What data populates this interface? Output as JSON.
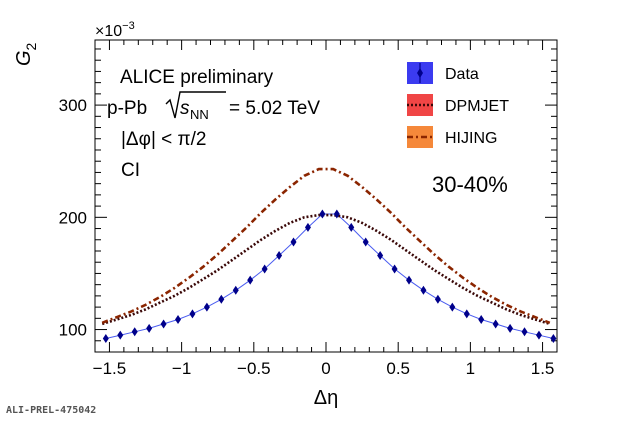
{
  "chart_data": {
    "type": "line",
    "ylabel": "G",
    "ylabel_sub": "2",
    "y_multiplier": "×10",
    "y_multiplier_exp": "−3",
    "xlabel": "Δη",
    "xlim": [
      -1.6,
      1.6
    ],
    "ylim": [
      80,
      358
    ],
    "x_ticks": [
      -1.5,
      -1,
      -0.5,
      0,
      0.5,
      1,
      1.5
    ],
    "x_tick_labels": [
      "−1.5",
      "−1",
      "−0.5",
      "0",
      "0.5",
      "1",
      "1.5"
    ],
    "y_ticks": [
      100,
      200,
      300
    ],
    "y_tick_labels": [
      "100",
      "200",
      "300"
    ],
    "annotations": {
      "experiment": "ALICE preliminary",
      "system_prefix": "p-Pb",
      "energy_value": "= 5.02 TeV",
      "phi_cut": "|Δφ| < π/2",
      "quantity": "CI",
      "centrality": "30-40%"
    },
    "legend_position": "top-right",
    "series": [
      {
        "name": "Data",
        "color": "#00008b",
        "fill": "#3b3bf0",
        "style": "markers",
        "x": [
          -1.525,
          -1.425,
          -1.325,
          -1.225,
          -1.125,
          -1.025,
          -0.925,
          -0.825,
          -0.725,
          -0.625,
          -0.525,
          -0.425,
          -0.325,
          -0.225,
          -0.125,
          -0.025,
          0.075,
          0.175,
          0.275,
          0.375,
          0.475,
          0.575,
          0.675,
          0.775,
          0.875,
          0.975,
          1.075,
          1.175,
          1.275,
          1.375,
          1.475,
          1.575
        ],
        "y": [
          92,
          95,
          98,
          101,
          105,
          109,
          114,
          120,
          127,
          135,
          144,
          154,
          166,
          178,
          191,
          203,
          203,
          191,
          178,
          166,
          154,
          144,
          135,
          127,
          120,
          114,
          109,
          105,
          101,
          98,
          95,
          92
        ]
      },
      {
        "name": "DPMJET",
        "color": "#3a0808",
        "fill": "#f04545",
        "style": "dotted",
        "x": [
          -1.55,
          -1.45,
          -1.35,
          -1.25,
          -1.15,
          -1.05,
          -0.95,
          -0.85,
          -0.75,
          -0.65,
          -0.55,
          -0.45,
          -0.35,
          -0.25,
          -0.15,
          -0.05,
          0.05,
          0.15,
          0.25,
          0.35,
          0.45,
          0.55,
          0.65,
          0.75,
          0.85,
          0.95,
          1.05,
          1.15,
          1.25,
          1.35,
          1.45,
          1.55
        ],
        "y": [
          105,
          109,
          113,
          118,
          124,
          130,
          137,
          145,
          153,
          162,
          171,
          180,
          188,
          195,
          200,
          202,
          202,
          200,
          195,
          188,
          180,
          171,
          162,
          153,
          145,
          137,
          130,
          124,
          118,
          113,
          109,
          105
        ]
      },
      {
        "name": "HIJING",
        "color": "#8b2500",
        "fill": "#f5883a",
        "style": "dashdot",
        "x": [
          -1.55,
          -1.45,
          -1.35,
          -1.25,
          -1.15,
          -1.05,
          -0.95,
          -0.85,
          -0.75,
          -0.65,
          -0.55,
          -0.45,
          -0.35,
          -0.25,
          -0.15,
          -0.05,
          0.05,
          0.15,
          0.25,
          0.35,
          0.45,
          0.55,
          0.65,
          0.75,
          0.85,
          0.95,
          1.05,
          1.15,
          1.25,
          1.35,
          1.45,
          1.55
        ],
        "y": [
          106,
          111,
          116,
          122,
          129,
          137,
          146,
          156,
          167,
          179,
          191,
          204,
          216,
          227,
          237,
          243,
          243,
          237,
          227,
          216,
          204,
          191,
          179,
          167,
          156,
          146,
          137,
          129,
          122,
          116,
          111,
          106
        ]
      }
    ]
  },
  "footer_label": "ALI-PREL-475042"
}
